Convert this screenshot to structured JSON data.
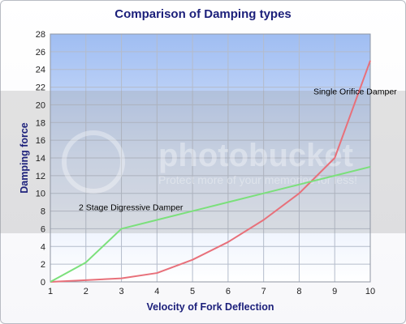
{
  "chart_data": {
    "type": "line",
    "title": "Comparison of Damping types",
    "xlabel": "Velocity of Fork Deflection",
    "ylabel": "Damping force",
    "xlim": [
      1,
      10
    ],
    "ylim": [
      0,
      28
    ],
    "x_ticks": [
      1,
      2,
      3,
      4,
      5,
      6,
      7,
      8,
      9,
      10
    ],
    "y_ticks": [
      0,
      2,
      4,
      6,
      8,
      10,
      12,
      14,
      16,
      18,
      20,
      22,
      24,
      26,
      28
    ],
    "grid": "both",
    "x": [
      1,
      2,
      3,
      4,
      5,
      6,
      7,
      8,
      9,
      10
    ],
    "series": [
      {
        "name": "Single Orifice Damper",
        "color": "#e8707a",
        "values": [
          0,
          0.2,
          0.4,
          1.0,
          2.5,
          4.5,
          7.0,
          10.0,
          14.0,
          25.0
        ]
      },
      {
        "name": "2 Stage Digressive Damper",
        "color": "#7be07b",
        "values": [
          0,
          2.2,
          6.0,
          7.0,
          8.0,
          9.0,
          10.0,
          11.0,
          12.0,
          13.0
        ]
      }
    ],
    "annotations": [
      {
        "text": "Single Orifice Damper",
        "x": 8.4,
        "y": 21.2
      },
      {
        "text": "2 Stage Digressive Damper",
        "x": 1.8,
        "y": 8.1
      }
    ]
  },
  "watermark": {
    "text": "photobucket",
    "subtext": "Protect more of your memories for less!"
  }
}
